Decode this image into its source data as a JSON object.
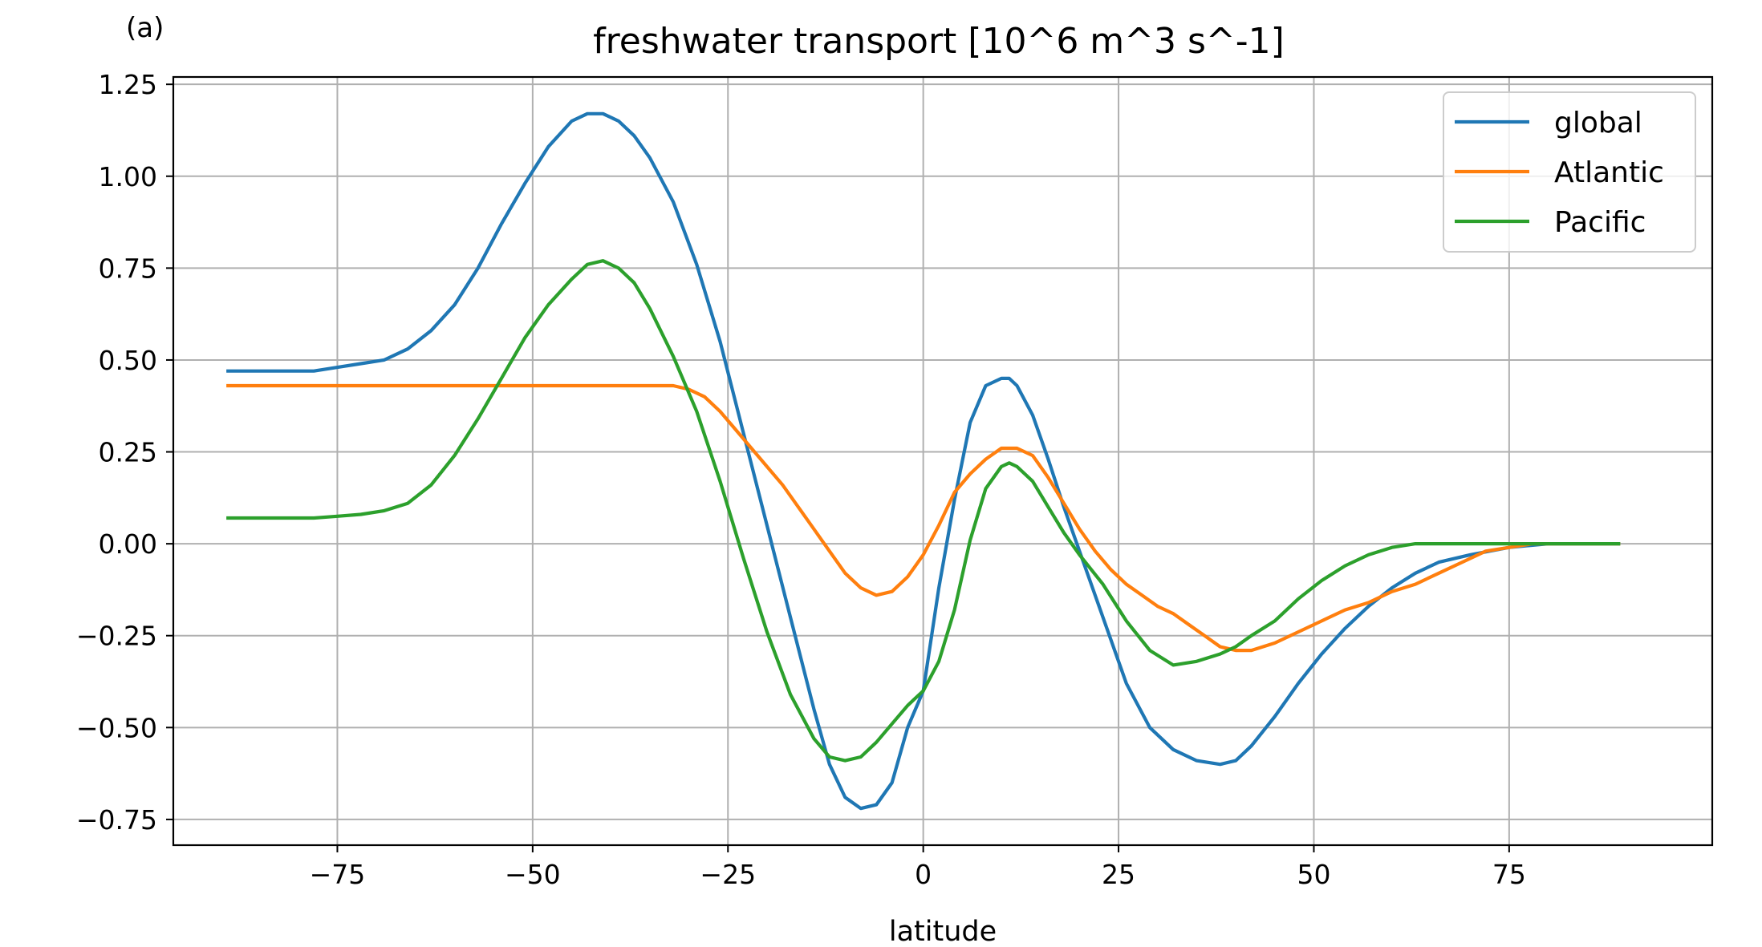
{
  "panel_label": "(a)",
  "chart_data": {
    "type": "line",
    "title": "freshwater transport [10^6 m^3 s^-1]",
    "xlabel": "latitude",
    "ylabel": "",
    "xlim": [
      -96,
      101
    ],
    "ylim": [
      -0.82,
      1.27
    ],
    "xticks": [
      -75,
      -50,
      -25,
      0,
      25,
      50,
      75
    ],
    "xtick_labels": [
      "−75",
      "−50",
      "−25",
      "0",
      "25",
      "50",
      "75"
    ],
    "yticks": [
      1.25,
      1.0,
      0.75,
      0.5,
      0.25,
      0.0,
      -0.25,
      -0.5,
      -0.75
    ],
    "ytick_labels": [
      "1.25",
      "1.00",
      "0.75",
      "0.50",
      "0.25",
      "0.00",
      "−0.25",
      "−0.50",
      "−0.75"
    ],
    "grid": true,
    "legend_position": "top-right",
    "series": [
      {
        "name": "global",
        "color": "#1f77b4",
        "x": [
          -89,
          -85,
          -80,
          -78,
          -75,
          -72,
          -69,
          -66,
          -63,
          -60,
          -57,
          -54,
          -51,
          -48,
          -45,
          -43,
          -41,
          -39,
          -37,
          -35,
          -32,
          -29,
          -26,
          -23,
          -20,
          -17,
          -14,
          -12,
          -10,
          -8,
          -6,
          -4,
          -2,
          0,
          2,
          4,
          6,
          8,
          10,
          11,
          12,
          14,
          16,
          18,
          20,
          23,
          26,
          29,
          32,
          35,
          38,
          40,
          42,
          45,
          48,
          51,
          54,
          57,
          60,
          63,
          66,
          70,
          75,
          80,
          85,
          89
        ],
        "y": [
          0.47,
          0.47,
          0.47,
          0.47,
          0.48,
          0.49,
          0.5,
          0.53,
          0.58,
          0.65,
          0.75,
          0.87,
          0.98,
          1.08,
          1.15,
          1.17,
          1.17,
          1.15,
          1.11,
          1.05,
          0.93,
          0.76,
          0.55,
          0.3,
          0.05,
          -0.2,
          -0.45,
          -0.6,
          -0.69,
          -0.72,
          -0.71,
          -0.65,
          -0.5,
          -0.4,
          -0.12,
          0.12,
          0.33,
          0.43,
          0.45,
          0.45,
          0.43,
          0.35,
          0.23,
          0.1,
          -0.02,
          -0.2,
          -0.38,
          -0.5,
          -0.56,
          -0.59,
          -0.6,
          -0.59,
          -0.55,
          -0.47,
          -0.38,
          -0.3,
          -0.23,
          -0.17,
          -0.12,
          -0.08,
          -0.05,
          -0.03,
          -0.01,
          0.0,
          0.0,
          0.0
        ]
      },
      {
        "name": "Atlantic",
        "color": "#ff7f0e",
        "x": [
          -89,
          -80,
          -70,
          -60,
          -50,
          -40,
          -35,
          -32,
          -30,
          -28,
          -26,
          -24,
          -22,
          -20,
          -18,
          -16,
          -14,
          -12,
          -10,
          -8,
          -6,
          -4,
          -2,
          0,
          2,
          4,
          6,
          8,
          10,
          11,
          12,
          14,
          16,
          18,
          20,
          22,
          24,
          26,
          28,
          30,
          32,
          34,
          36,
          38,
          40,
          42,
          45,
          48,
          51,
          54,
          57,
          60,
          63,
          66,
          69,
          72,
          75,
          78,
          82,
          85,
          89
        ],
        "y": [
          0.43,
          0.43,
          0.43,
          0.43,
          0.43,
          0.43,
          0.43,
          0.43,
          0.42,
          0.4,
          0.36,
          0.31,
          0.26,
          0.21,
          0.16,
          0.1,
          0.04,
          -0.02,
          -0.08,
          -0.12,
          -0.14,
          -0.13,
          -0.09,
          -0.03,
          0.05,
          0.14,
          0.19,
          0.23,
          0.26,
          0.26,
          0.26,
          0.24,
          0.18,
          0.11,
          0.04,
          -0.02,
          -0.07,
          -0.11,
          -0.14,
          -0.17,
          -0.19,
          -0.22,
          -0.25,
          -0.28,
          -0.29,
          -0.29,
          -0.27,
          -0.24,
          -0.21,
          -0.18,
          -0.16,
          -0.13,
          -0.11,
          -0.08,
          -0.05,
          -0.02,
          -0.01,
          0.0,
          0.0,
          0.0,
          0.0
        ]
      },
      {
        "name": "Pacific",
        "color": "#2ca02c",
        "x": [
          -89,
          -85,
          -80,
          -78,
          -75,
          -72,
          -69,
          -66,
          -63,
          -60,
          -57,
          -54,
          -51,
          -48,
          -45,
          -43,
          -41,
          -39,
          -37,
          -35,
          -32,
          -29,
          -26,
          -23,
          -20,
          -17,
          -14,
          -12,
          -10,
          -8,
          -6,
          -4,
          -2,
          0,
          2,
          4,
          6,
          8,
          10,
          11,
          12,
          14,
          16,
          18,
          20,
          23,
          26,
          29,
          32,
          35,
          38,
          40,
          42,
          45,
          48,
          51,
          54,
          57,
          60,
          63,
          66,
          70,
          75,
          80,
          85,
          89
        ],
        "y": [
          0.07,
          0.07,
          0.07,
          0.07,
          0.075,
          0.08,
          0.09,
          0.11,
          0.16,
          0.24,
          0.34,
          0.45,
          0.56,
          0.65,
          0.72,
          0.76,
          0.77,
          0.75,
          0.71,
          0.64,
          0.51,
          0.36,
          0.17,
          -0.04,
          -0.24,
          -0.41,
          -0.53,
          -0.58,
          -0.59,
          -0.58,
          -0.54,
          -0.49,
          -0.44,
          -0.4,
          -0.32,
          -0.18,
          0.01,
          0.15,
          0.21,
          0.22,
          0.21,
          0.17,
          0.1,
          0.03,
          -0.03,
          -0.11,
          -0.21,
          -0.29,
          -0.33,
          -0.32,
          -0.3,
          -0.28,
          -0.25,
          -0.21,
          -0.15,
          -0.1,
          -0.06,
          -0.03,
          -0.01,
          0.0,
          0.0,
          0.0,
          0.0,
          0.0,
          0.0,
          0.0
        ]
      }
    ]
  }
}
